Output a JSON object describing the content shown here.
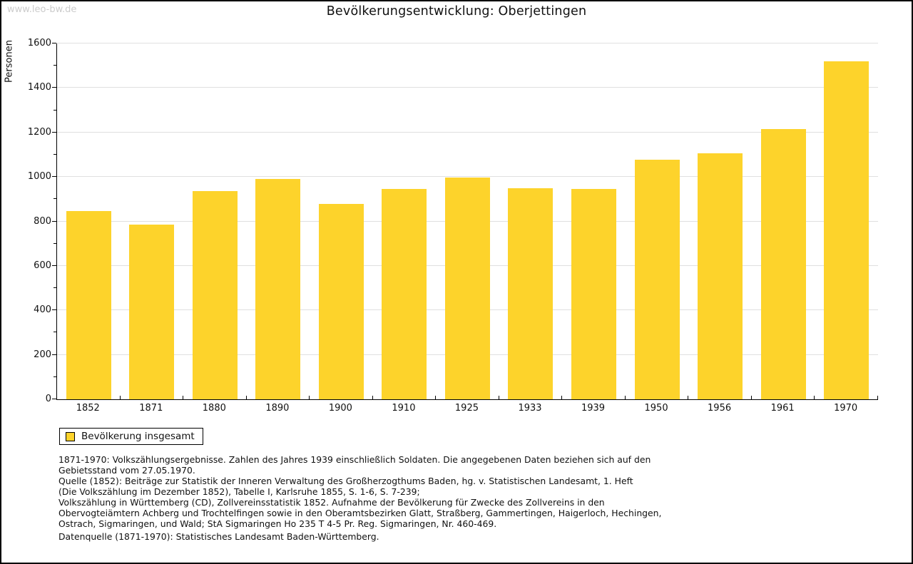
{
  "page": {
    "watermark": "www.leo-bw.de",
    "title": "Bevölkerungsentwicklung: Oberjettingen"
  },
  "chart_data": {
    "type": "bar",
    "title": "Bevölkerungsentwicklung: Oberjettingen",
    "xlabel": "",
    "ylabel": "Personen",
    "categories": [
      "1852",
      "1871",
      "1880",
      "1890",
      "1900",
      "1910",
      "1925",
      "1933",
      "1939",
      "1950",
      "1956",
      "1961",
      "1970"
    ],
    "values": [
      848,
      787,
      937,
      990,
      878,
      946,
      998,
      950,
      946,
      1079,
      1105,
      1215,
      1520
    ],
    "ylim": [
      0,
      1600
    ],
    "ytick_step": 200,
    "yminor_step": 100,
    "grid": true,
    "legend_entries": [
      "Bevölkerung insgesamt"
    ],
    "legend_position": "bottom-left",
    "bar_color": "#fdd32b"
  },
  "legend": {
    "label": "Bevölkerung insgesamt"
  },
  "footer": {
    "notes": "1871-1970: Volkszählungsergebnisse. Zahlen des Jahres 1939 einschließlich Soldaten. Die angegebenen Daten beziehen sich auf den\nGebietsstand vom 27.05.1970.\nQuelle (1852): Beiträge zur Statistik der Inneren Verwaltung des Großherzogthums Baden, hg. v. Statistischen Landesamt, 1. Heft\n(Die Volkszählung im Dezember 1852), Tabelle I, Karlsruhe 1855, S. 1-6, S. 7-239;\nVolkszählung in Württemberg (CD), Zollvereinsstatistik 1852. Aufnahme der Bevölkerung für Zwecke des Zollvereins in den\nObervogteiämtern Achberg und Trochtelfingen sowie in den Oberamtsbezirken Glatt, Straßberg, Gammertingen, Haigerloch, Hechingen,\nOstrach, Sigmaringen, und Wald; StA Sigmaringen Ho 235 T 4-5 Pr. Reg. Sigmaringen, Nr. 460-469.",
    "datasource": "Datenquelle (1871-1970): Statistisches Landesamt Baden-Württemberg."
  },
  "colors": {
    "bar": "#fdd32b",
    "grid": "#e0e0e0",
    "axis": "#000000",
    "watermark": "#cccccc",
    "text": "#111111"
  }
}
